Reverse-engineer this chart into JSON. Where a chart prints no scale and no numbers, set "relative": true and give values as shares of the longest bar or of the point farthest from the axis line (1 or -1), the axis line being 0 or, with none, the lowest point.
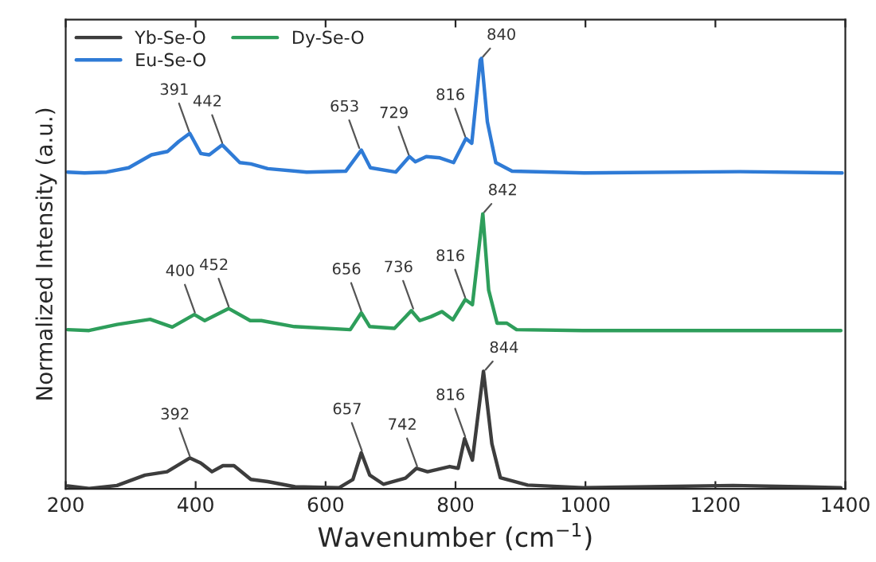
{
  "chart_data": {
    "type": "line",
    "relative": true,
    "xlabel": "Wavenumber (cm$^{−1}$)",
    "ylabel": "Normalized Intensity (a.u.)",
    "xlim": [
      200,
      1400
    ],
    "xticks": [
      200,
      400,
      600,
      800,
      1000,
      1200,
      1400
    ],
    "grid": false,
    "legend": "top left",
    "marker": "none",
    "line_style": "solid",
    "series": [
      {
        "name": "Yb-Se-O",
        "color": "#3d3d3d",
        "x": [
          203,
          236,
          279,
          322,
          356,
          391,
          408,
          425,
          442,
          459,
          485,
          511,
          553,
          621,
          642,
          655,
          668,
          689,
          723,
          740,
          757,
          791,
          804,
          814,
          826,
          843,
          856,
          869,
          911,
          996,
          1227,
          1393
        ],
        "values": [
          0.007,
          0.001,
          0.008,
          0.032,
          0.04,
          0.072,
          0.06,
          0.04,
          0.054,
          0.054,
          0.022,
          0.017,
          0.005,
          0.003,
          0.022,
          0.084,
          0.032,
          0.011,
          0.025,
          0.048,
          0.04,
          0.052,
          0.048,
          0.117,
          0.067,
          0.273,
          0.105,
          0.026,
          0.009,
          0.003,
          0.008,
          0.003
        ]
      },
      {
        "name": "Dy-Se-O",
        "color": "#2e9e5b",
        "x": [
          203,
          236,
          279,
          330,
          364,
          398,
          414,
          451,
          484,
          501,
          552,
          638,
          655,
          668,
          706,
          732,
          745,
          762,
          779,
          796,
          815,
          826,
          842,
          851,
          864,
          879,
          894,
          996,
          1393
        ],
        "values": [
          0.37,
          0.368,
          0.382,
          0.394,
          0.376,
          0.405,
          0.391,
          0.419,
          0.391,
          0.391,
          0.377,
          0.37,
          0.409,
          0.377,
          0.373,
          0.414,
          0.391,
          0.4,
          0.412,
          0.393,
          0.44,
          0.428,
          0.639,
          0.462,
          0.385,
          0.385,
          0.37,
          0.368,
          0.368
        ]
      },
      {
        "name": "Eu-Se-O",
        "color": "#2f7bd6",
        "x": [
          203,
          229,
          263,
          297,
          332,
          357,
          374,
          391,
          408,
          421,
          441,
          468,
          485,
          511,
          571,
          631,
          655,
          669,
          708,
          729,
          738,
          755,
          776,
          797,
          816,
          825,
          838,
          840,
          849,
          862,
          887,
          998,
          1238,
          1395
        ],
        "values": [
          0.736,
          0.734,
          0.736,
          0.746,
          0.776,
          0.784,
          0.807,
          0.826,
          0.779,
          0.776,
          0.799,
          0.758,
          0.755,
          0.744,
          0.736,
          0.738,
          0.787,
          0.746,
          0.736,
          0.772,
          0.76,
          0.772,
          0.769,
          0.758,
          0.814,
          0.803,
          0.996,
          1.0,
          0.853,
          0.758,
          0.738,
          0.734,
          0.737,
          0.734
        ]
      }
    ],
    "annotations": [
      {
        "text": "392",
        "x": 392,
        "y": 0.072
      },
      {
        "text": "657",
        "x": 657,
        "y": 0.084
      },
      {
        "text": "742",
        "x": 742,
        "y": 0.048
      },
      {
        "text": "816",
        "x": 816,
        "y": 0.117
      },
      {
        "text": "844",
        "x": 844,
        "y": 0.273
      },
      {
        "text": "400",
        "x": 400,
        "y": 0.405
      },
      {
        "text": "452",
        "x": 452,
        "y": 0.419
      },
      {
        "text": "656",
        "x": 656,
        "y": 0.409
      },
      {
        "text": "736",
        "x": 736,
        "y": 0.414
      },
      {
        "text": "816",
        "x": 816,
        "y": 0.44
      },
      {
        "text": "842",
        "x": 842,
        "y": 0.639
      },
      {
        "text": "391",
        "x": 391,
        "y": 0.826
      },
      {
        "text": "442",
        "x": 442,
        "y": 0.799
      },
      {
        "text": "653",
        "x": 653,
        "y": 0.787
      },
      {
        "text": "729",
        "x": 729,
        "y": 0.772
      },
      {
        "text": "816",
        "x": 816,
        "y": 0.814
      },
      {
        "text": "840",
        "x": 840,
        "y": 1.0
      }
    ]
  }
}
